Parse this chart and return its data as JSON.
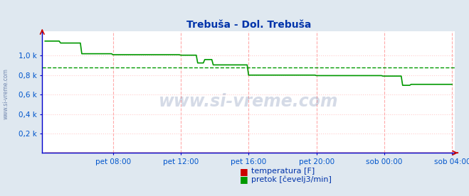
{
  "title": "Trebuša - Dol. Trebuša",
  "title_color": "#0033aa",
  "bg_color": "#dfe8f0",
  "plot_bg_color": "#ffffff",
  "ylabel_color": "#0055cc",
  "xlabel_color": "#0055cc",
  "grid_v_color": "#ffaaaa",
  "grid_h_color": "#ffcccc",
  "axis_color": "#0000cc",
  "ymin": 0,
  "ymax": 1250,
  "yticks": [
    200,
    400,
    600,
    800,
    1000
  ],
  "ytick_labels": [
    "0,2 k",
    "0,4 k",
    "0,6 k",
    "0,8 k",
    "1,0 k"
  ],
  "xtick_labels": [
    "pet 08:00",
    "pet 12:00",
    "pet 16:00",
    "pet 20:00",
    "sob 00:00",
    "sob 04:00"
  ],
  "watermark": "www.si-vreme.com",
  "watermark_color": "#1a3a7a",
  "watermark_alpha": 0.18,
  "side_watermark": "www.si-vreme.com",
  "avg_line_value": 878,
  "avg_line_color": "#009900",
  "temp_color": "#cc0000",
  "flow_color": "#009900",
  "legend_temp_label": "temperatura [F]",
  "legend_flow_label": "pretok [čevelj3/min]",
  "legend_color": "#0033aa",
  "n_points": 288,
  "xtick_positions": [
    48,
    96,
    144,
    192,
    240,
    288
  ],
  "flow_data": [
    [
      0,
      1150
    ],
    [
      10,
      1150
    ],
    [
      11,
      1130
    ],
    [
      25,
      1130
    ],
    [
      26,
      1020
    ],
    [
      47,
      1020
    ],
    [
      48,
      1010
    ],
    [
      95,
      1010
    ],
    [
      96,
      1005
    ],
    [
      107,
      1005
    ],
    [
      108,
      925
    ],
    [
      112,
      925
    ],
    [
      113,
      960
    ],
    [
      118,
      960
    ],
    [
      119,
      905
    ],
    [
      143,
      905
    ],
    [
      144,
      800
    ],
    [
      191,
      800
    ],
    [
      192,
      795
    ],
    [
      238,
      795
    ],
    [
      239,
      790
    ],
    [
      252,
      790
    ],
    [
      253,
      695
    ],
    [
      258,
      695
    ],
    [
      259,
      705
    ],
    [
      288,
      705
    ]
  ],
  "temp_data": [
    [
      0,
      3
    ],
    [
      288,
      3
    ]
  ]
}
